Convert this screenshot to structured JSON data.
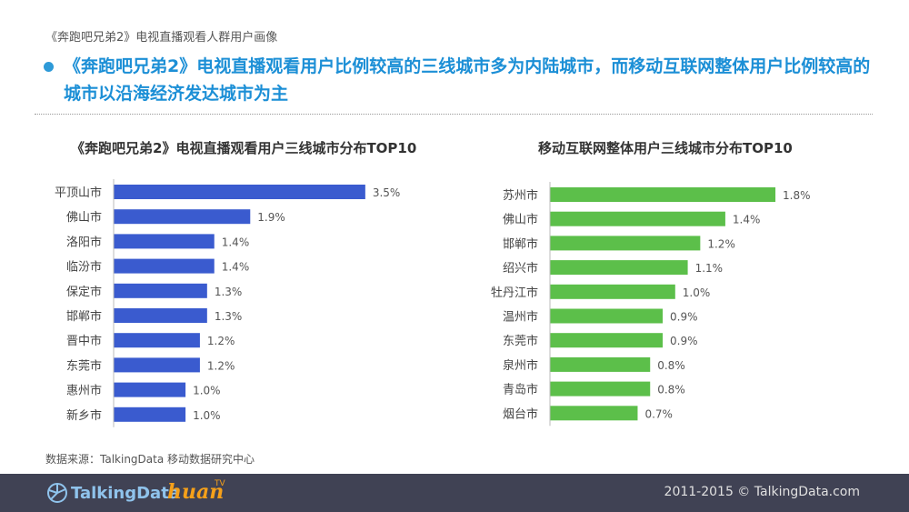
{
  "header": {
    "subtitle": "《奔跑吧兄弟2》电视直播观看人群用户画像",
    "headline": "《奔跑吧兄弟2》电视直播观看用户比例较高的三线城市多为内陆城市，而移动互联网整体用户比例较高的城市以沿海经济发达城市为主"
  },
  "colors": {
    "left_bar": "#3a5bcf",
    "right_bar": "#5cbf4a",
    "headline": "#1c8fd6",
    "footer_bg": "#404254"
  },
  "chart_data": [
    {
      "type": "bar",
      "orientation": "horizontal",
      "title": "《奔跑吧兄弟2》电视直播观看用户三线城市分布TOP10",
      "categories": [
        "平顶山市",
        "佛山市",
        "洛阳市",
        "临汾市",
        "保定市",
        "邯郸市",
        "晋中市",
        "东莞市",
        "惠州市",
        "新乡市"
      ],
      "values": [
        3.5,
        1.9,
        1.4,
        1.4,
        1.3,
        1.3,
        1.2,
        1.2,
        1.0,
        1.0
      ],
      "labels": [
        "3.5%",
        "1.9%",
        "1.4%",
        "1.4%",
        "1.3%",
        "1.3%",
        "1.2%",
        "1.2%",
        "1.0%",
        "1.0%"
      ],
      "unit": "%"
    },
    {
      "type": "bar",
      "orientation": "horizontal",
      "title": "移动互联网整体用户三线城市分布TOP10",
      "categories": [
        "苏州市",
        "佛山市",
        "邯郸市",
        "绍兴市",
        "牡丹江市",
        "温州市",
        "东莞市",
        "泉州市",
        "青岛市",
        "烟台市"
      ],
      "values": [
        1.8,
        1.4,
        1.2,
        1.1,
        1.0,
        0.9,
        0.9,
        0.8,
        0.8,
        0.7
      ],
      "labels": [
        "1.8%",
        "1.4%",
        "1.2%",
        "1.1%",
        "1.0%",
        "0.9%",
        "0.9%",
        "0.8%",
        "0.8%",
        "0.7%"
      ],
      "unit": "%"
    }
  ],
  "source": "数据来源：TalkingData 移动数据研究中心",
  "footer": {
    "logo_talkingdata": "TalkingData",
    "logo_huan": "huan",
    "logo_tv": "TV",
    "copyright": "2011-2015 © TalkingData.com"
  }
}
